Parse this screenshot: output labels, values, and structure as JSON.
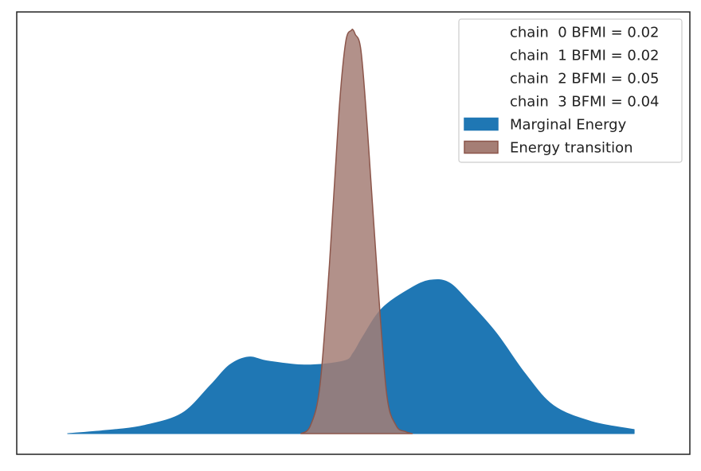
{
  "chart_data": {
    "type": "area",
    "title": "",
    "xlabel": "",
    "ylabel": "",
    "x_axis_visible": false,
    "y_axis_visible": false,
    "grid": false,
    "legend_placement": "top-right",
    "xlim": [
      -3.2,
      3.2
    ],
    "ylim": [
      0,
      1.0
    ],
    "legend": [
      {
        "label": "chain  0 BFMI = 0.02",
        "swatch": false
      },
      {
        "label": "chain  1 BFMI = 0.02",
        "swatch": false
      },
      {
        "label": "chain  2 BFMI = 0.05",
        "swatch": false
      },
      {
        "label": "chain  3 BFMI = 0.04",
        "swatch": false
      },
      {
        "label": "Marginal Energy",
        "swatch": true,
        "color": "#1f77b4",
        "edge": "#1f77b4"
      },
      {
        "label": "Energy transition",
        "swatch": true,
        "color": "#a57e75",
        "edge": "#8c564b"
      }
    ],
    "series": [
      {
        "name": "Marginal Energy",
        "color": "#1f77b4",
        "opacity": 1.0,
        "x": [
          -3.0,
          -2.5,
          -2.2,
          -1.8,
          -1.5,
          -1.3,
          -1.1,
          -0.9,
          -0.5,
          -0.1,
          0.0,
          0.1,
          0.3,
          0.6,
          0.8,
          1.0,
          1.2,
          1.5,
          1.8,
          2.1,
          2.5,
          2.95
        ],
        "y": [
          0.0,
          0.01,
          0.02,
          0.05,
          0.12,
          0.17,
          0.19,
          0.18,
          0.17,
          0.18,
          0.2,
          0.24,
          0.31,
          0.36,
          0.38,
          0.375,
          0.33,
          0.25,
          0.15,
          0.07,
          0.03,
          0.01
        ]
      },
      {
        "name": "Energy transition",
        "color": "#a57e75",
        "edge": "#8c564b",
        "opacity": 0.85,
        "x": [
          -0.55,
          -0.45,
          -0.35,
          -0.25,
          -0.15,
          -0.08,
          -0.02,
          0.0,
          0.02,
          0.08,
          0.15,
          0.25,
          0.35,
          0.45,
          0.55,
          0.62
        ],
        "y": [
          0.0,
          0.02,
          0.12,
          0.42,
          0.8,
          0.97,
          1.0,
          1.0,
          0.99,
          0.95,
          0.75,
          0.4,
          0.1,
          0.02,
          0.005,
          0.0
        ]
      }
    ]
  }
}
